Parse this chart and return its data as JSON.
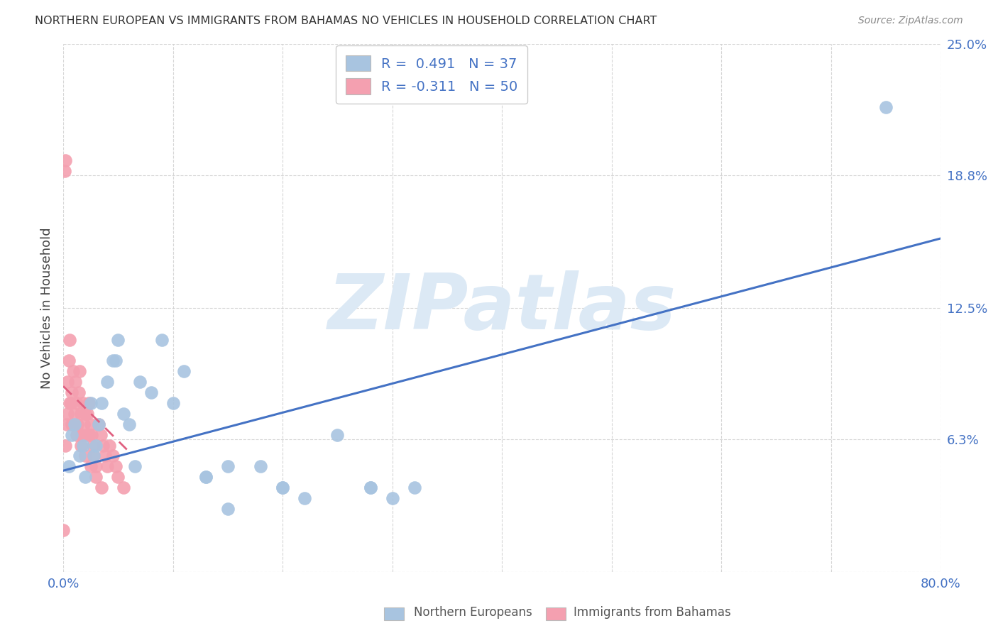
{
  "title": "NORTHERN EUROPEAN VS IMMIGRANTS FROM BAHAMAS NO VEHICLES IN HOUSEHOLD CORRELATION CHART",
  "source": "Source: ZipAtlas.com",
  "ylabel": "No Vehicles in Household",
  "xlim": [
    0.0,
    0.8
  ],
  "ylim": [
    0.0,
    0.25
  ],
  "xticks": [
    0.0,
    0.1,
    0.2,
    0.3,
    0.4,
    0.5,
    0.6,
    0.7,
    0.8
  ],
  "xticklabels": [
    "0.0%",
    "",
    "",
    "",
    "",
    "",
    "",
    "",
    "80.0%"
  ],
  "yticks": [
    0.0,
    0.063,
    0.125,
    0.188,
    0.25
  ],
  "yticklabels": [
    "",
    "6.3%",
    "12.5%",
    "18.8%",
    "25.0%"
  ],
  "blue_R": "0.491",
  "blue_N": "37",
  "pink_R": "-0.311",
  "pink_N": "50",
  "blue_dot_color": "#a8c4e0",
  "blue_line_color": "#4472c4",
  "pink_dot_color": "#f4a0b0",
  "pink_line_color": "#e06080",
  "tick_color": "#4472c4",
  "legend_text_color": "#4472c4",
  "watermark": "ZIPatlas",
  "watermark_color": "#dce9f5",
  "legend_label_blue": "Northern Europeans",
  "legend_label_pink": "Immigrants from Bahamas",
  "blue_x": [
    0.005,
    0.008,
    0.01,
    0.015,
    0.018,
    0.02,
    0.025,
    0.028,
    0.03,
    0.032,
    0.035,
    0.04,
    0.045,
    0.048,
    0.05,
    0.055,
    0.06,
    0.065,
    0.07,
    0.08,
    0.09,
    0.1,
    0.11,
    0.13,
    0.15,
    0.18,
    0.2,
    0.22,
    0.25,
    0.28,
    0.3,
    0.28,
    0.32,
    0.2,
    0.15,
    0.13,
    0.75
  ],
  "blue_y": [
    0.05,
    0.065,
    0.07,
    0.055,
    0.06,
    0.045,
    0.08,
    0.055,
    0.06,
    0.07,
    0.08,
    0.09,
    0.1,
    0.1,
    0.11,
    0.075,
    0.07,
    0.05,
    0.09,
    0.085,
    0.11,
    0.08,
    0.095,
    0.045,
    0.05,
    0.05,
    0.04,
    0.035,
    0.065,
    0.04,
    0.035,
    0.04,
    0.04,
    0.04,
    0.03,
    0.045,
    0.22
  ],
  "pink_x": [
    0.0,
    0.001,
    0.002,
    0.003,
    0.004,
    0.005,
    0.006,
    0.007,
    0.008,
    0.009,
    0.01,
    0.011,
    0.012,
    0.013,
    0.014,
    0.015,
    0.016,
    0.017,
    0.018,
    0.019,
    0.02,
    0.021,
    0.022,
    0.023,
    0.024,
    0.025,
    0.026,
    0.027,
    0.028,
    0.03,
    0.032,
    0.034,
    0.036,
    0.038,
    0.04,
    0.042,
    0.045,
    0.048,
    0.05,
    0.055,
    0.002,
    0.004,
    0.006,
    0.008,
    0.012,
    0.016,
    0.02,
    0.025,
    0.03,
    0.035
  ],
  "pink_y": [
    0.02,
    0.19,
    0.195,
    0.07,
    0.09,
    0.1,
    0.11,
    0.08,
    0.085,
    0.095,
    0.075,
    0.09,
    0.08,
    0.07,
    0.085,
    0.095,
    0.075,
    0.065,
    0.08,
    0.07,
    0.075,
    0.065,
    0.075,
    0.08,
    0.065,
    0.07,
    0.065,
    0.06,
    0.055,
    0.05,
    0.07,
    0.065,
    0.06,
    0.055,
    0.05,
    0.06,
    0.055,
    0.05,
    0.045,
    0.04,
    0.06,
    0.075,
    0.08,
    0.07,
    0.065,
    0.06,
    0.055,
    0.05,
    0.045,
    0.04
  ],
  "blue_line_x": [
    0.0,
    0.8
  ],
  "blue_line_y": [
    0.048,
    0.158
  ],
  "pink_line_x": [
    0.0,
    0.058
  ],
  "pink_line_y": [
    0.088,
    0.058
  ]
}
